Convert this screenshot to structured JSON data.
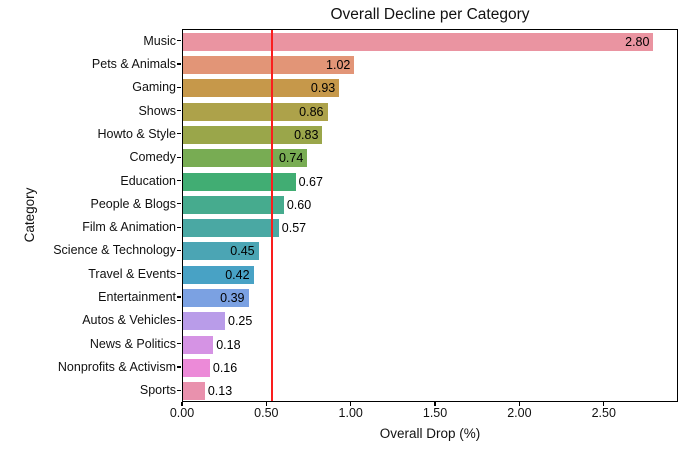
{
  "figure": {
    "background": "#ffffff"
  },
  "chart_data": {
    "type": "bar",
    "orientation": "horizontal",
    "title": "Overall Decline per Category",
    "xlabel": "Overall Drop (%)",
    "ylabel": "Category",
    "categories": [
      "Music",
      "Pets & Animals",
      "Gaming",
      "Shows",
      "Howto & Style",
      "Comedy",
      "Education",
      "People & Blogs",
      "Film & Animation",
      "Science & Technology",
      "Travel & Events",
      "Entertainment",
      "Autos & Vehicles",
      "News & Politics",
      "Nonprofits & Activism",
      "Sports"
    ],
    "values": [
      2.8,
      1.02,
      0.93,
      0.86,
      0.83,
      0.74,
      0.67,
      0.6,
      0.57,
      0.45,
      0.42,
      0.39,
      0.25,
      0.18,
      0.16,
      0.13
    ],
    "value_labels": [
      "2.80",
      "1.02",
      "0.93",
      "0.86",
      "0.83",
      "0.74",
      "0.67",
      "0.60",
      "0.57",
      "0.45",
      "0.42",
      "0.39",
      "0.25",
      "0.18",
      "0.16",
      "0.13"
    ],
    "label_inside": [
      true,
      true,
      true,
      true,
      true,
      true,
      false,
      false,
      false,
      true,
      true,
      true,
      false,
      false,
      false,
      false
    ],
    "bar_colors": [
      "#ea94a1",
      "#e29577",
      "#c6984a",
      "#ada24a",
      "#9aa64a",
      "#78ac53",
      "#41ad73",
      "#46ab8e",
      "#4aa8a3",
      "#4ba5b4",
      "#48a2c5",
      "#7ba1e2",
      "#b99ce9",
      "#d593e4",
      "#ec8ad8",
      "#e991ad"
    ],
    "xlim": [
      0,
      2.94
    ],
    "x_tick_labels": [
      "0.00",
      "0.50",
      "1.00",
      "1.50",
      "2.00",
      "2.50"
    ],
    "x_tick_values": [
      0.0,
      0.5,
      1.0,
      1.5,
      2.0,
      2.5
    ],
    "reference_line": {
      "orientation": "vertical",
      "x": 0.53,
      "color": "#fa1e1e"
    },
    "grid": false,
    "legend": false,
    "bar_label_color": "#000000",
    "text_color": "#111111"
  }
}
